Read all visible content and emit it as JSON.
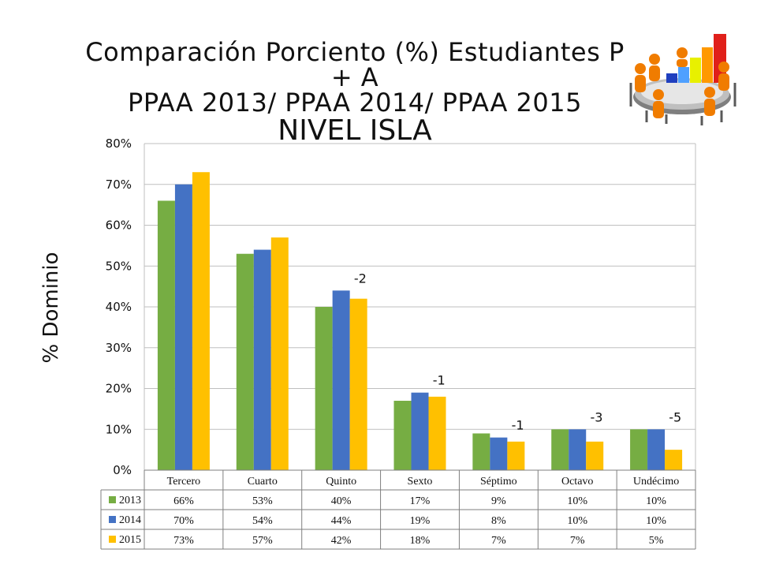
{
  "title": {
    "line1": "Comparación Porciento (%) Estudiantes P + A",
    "line2": "PPAA 2013/ PPAA 2014/ PPAA 2015",
    "line3": "NIVEL ISLA"
  },
  "logo": {
    "icon": "meeting-bar-chart-icon"
  },
  "colors": {
    "2013": "#76ad43",
    "2014": "#4472c4",
    "2015": "#ffc000"
  },
  "chart_data": {
    "type": "bar",
    "title": "Comparación Porciento (%) Estudiantes P + A PPAA 2013/ PPAA 2014/ PPAA 2015 NIVEL ISLA",
    "ylabel": "% Dominio",
    "xlabel": "",
    "ylim": [
      0,
      80
    ],
    "yticks": [
      "0%",
      "10%",
      "20%",
      "30%",
      "40%",
      "50%",
      "60%",
      "70%",
      "80%"
    ],
    "grid": true,
    "legend": "data-table",
    "categories": [
      "Tercero",
      "Cuarto",
      "Quinto",
      "Sexto",
      "Séptimo",
      "Octavo",
      "Undécimo"
    ],
    "series": [
      {
        "name": "2013",
        "values": [
          66,
          53,
          40,
          17,
          9,
          10,
          10
        ],
        "labels": [
          "66%",
          "53%",
          "40%",
          "17%",
          "9%",
          "10%",
          "10%"
        ]
      },
      {
        "name": "2014",
        "values": [
          70,
          54,
          44,
          19,
          8,
          10,
          10
        ],
        "labels": [
          "70%",
          "54%",
          "44%",
          "19%",
          "8%",
          "10%",
          "10%"
        ]
      },
      {
        "name": "2015",
        "values": [
          73,
          57,
          42,
          18,
          7,
          7,
          5
        ],
        "labels": [
          "73%",
          "57%",
          "42%",
          "18%",
          "7%",
          "7%",
          "5%"
        ]
      }
    ],
    "annotations": [
      {
        "category": "Quinto",
        "text": "-2"
      },
      {
        "category": "Sexto",
        "text": "-1"
      },
      {
        "category": "Séptimo",
        "text": "-1"
      },
      {
        "category": "Octavo",
        "text": "-3"
      },
      {
        "category": "Undécimo",
        "text": "-5"
      }
    ]
  }
}
